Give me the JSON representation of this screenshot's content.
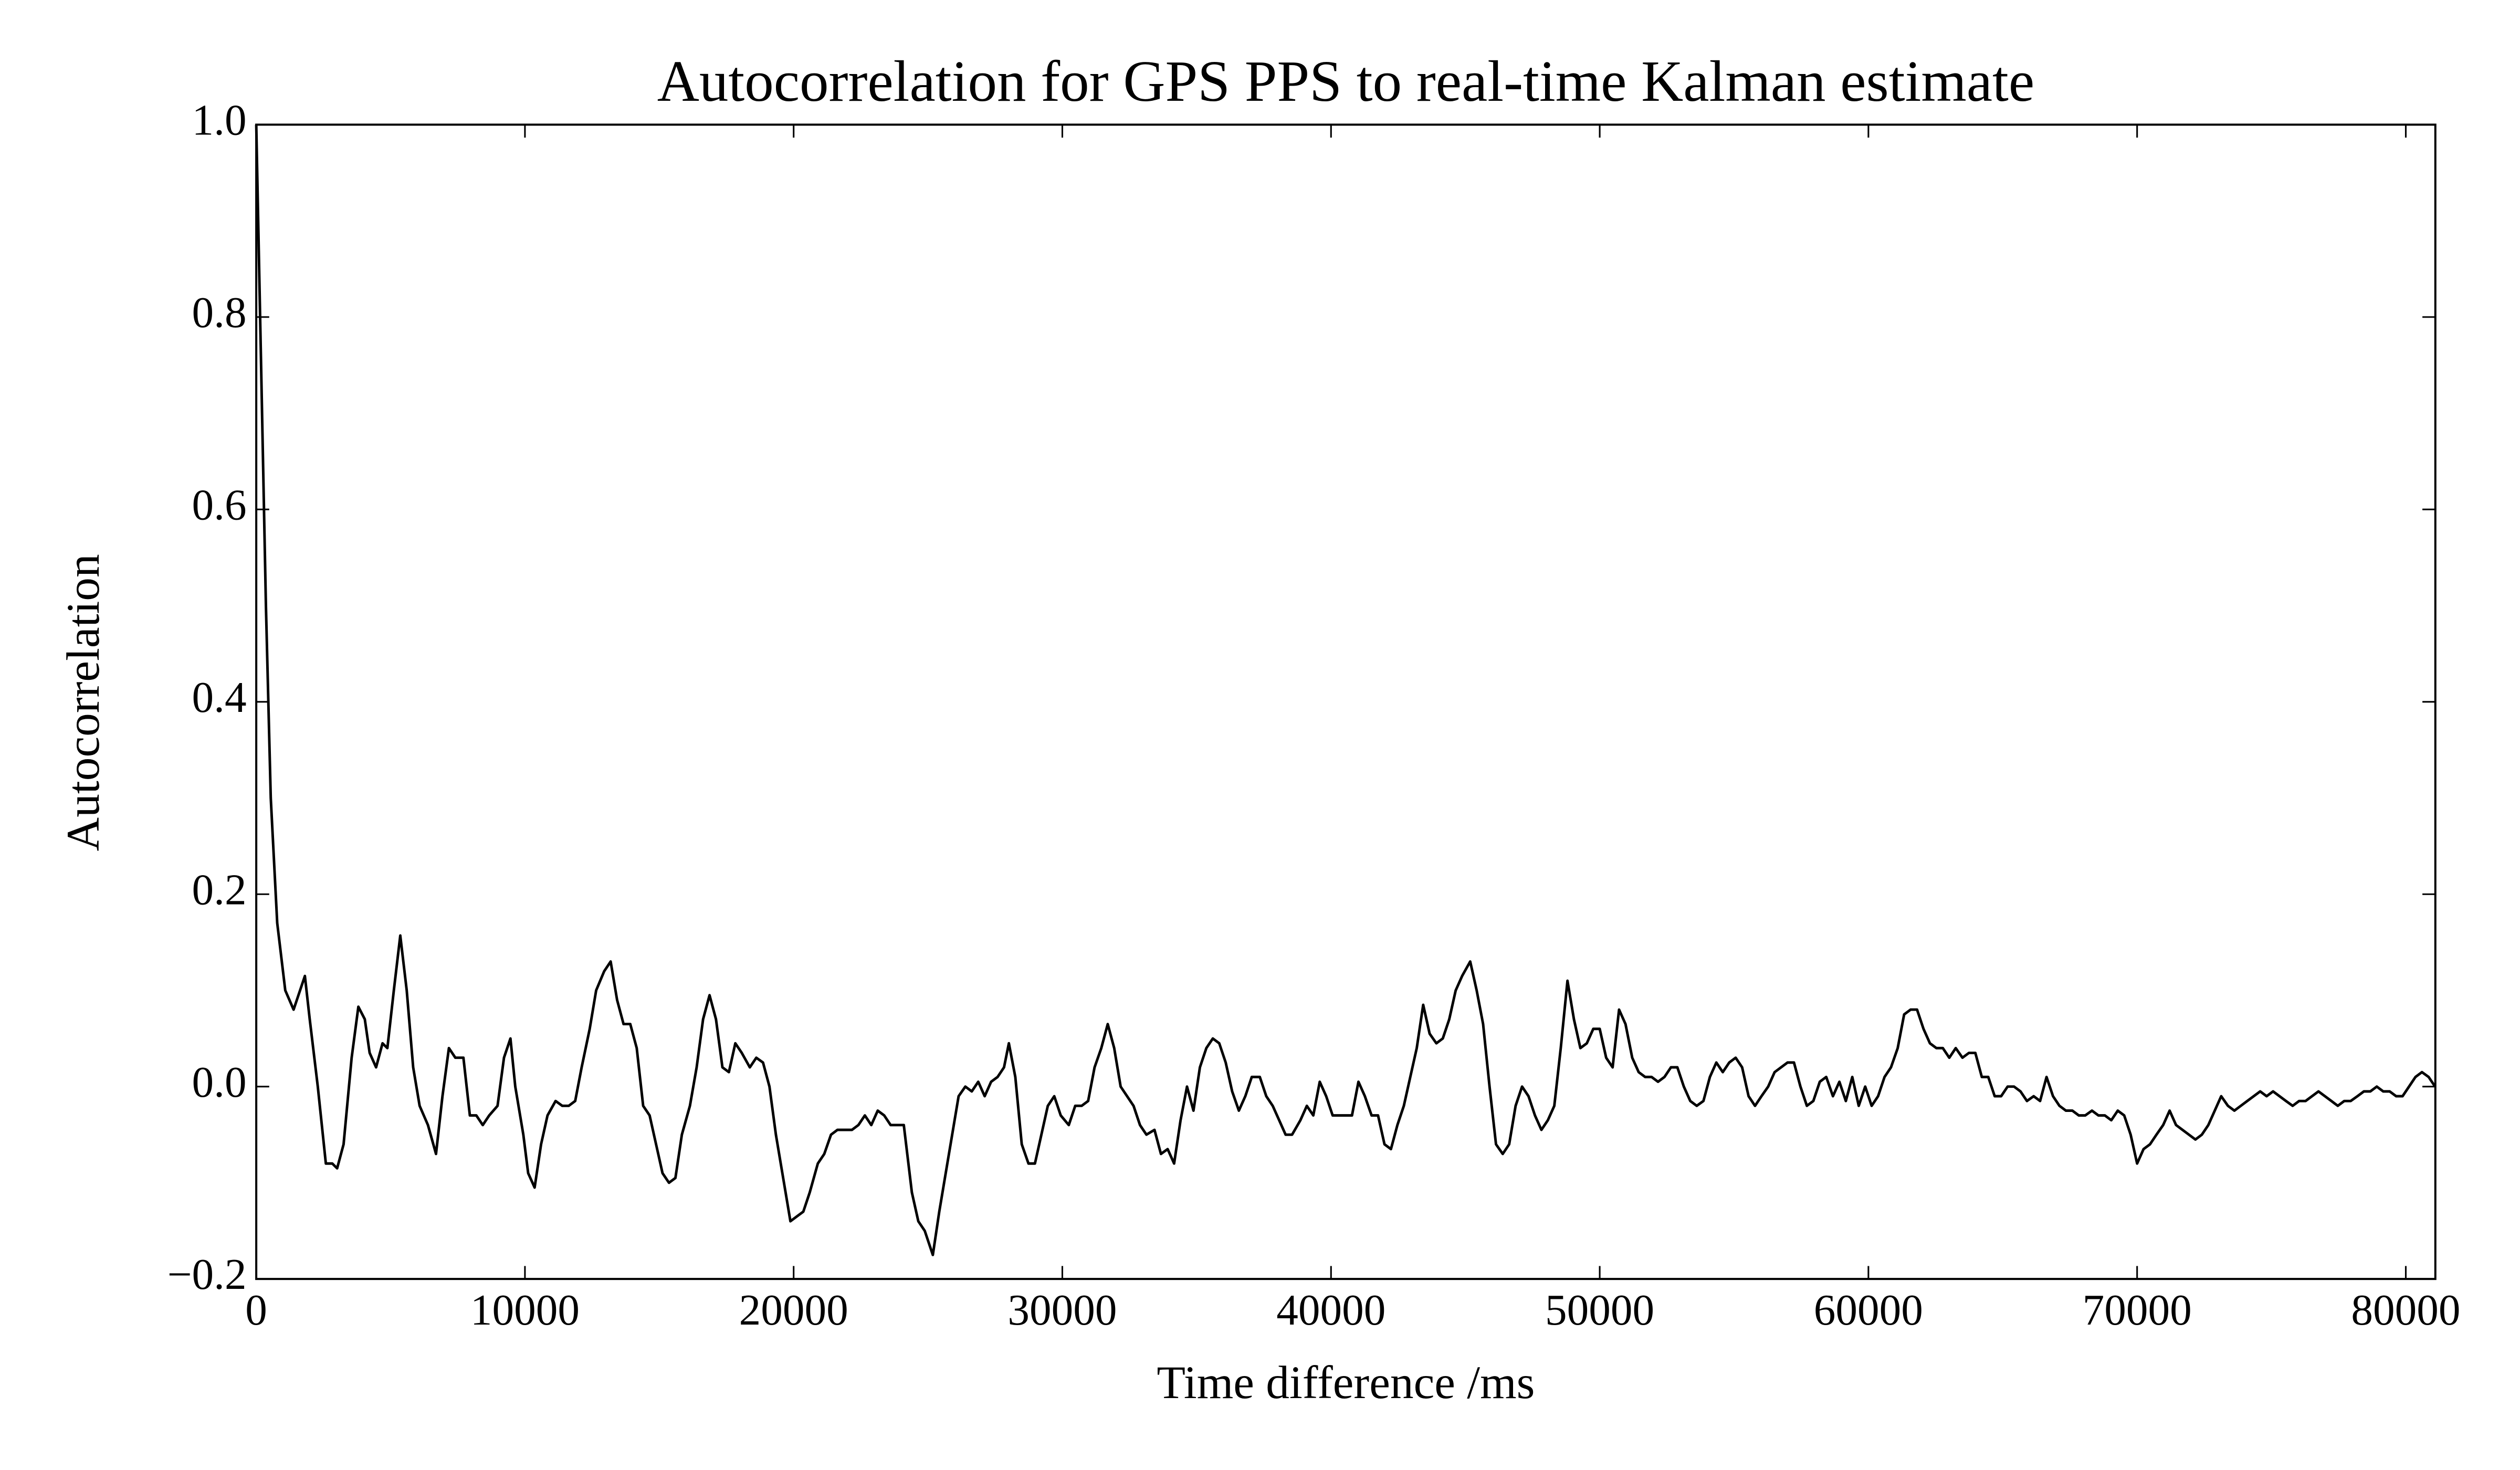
{
  "chart_data": {
    "type": "line",
    "title": "Autocorrelation for GPS PPS to real-time Kalman estimate",
    "xlabel": "Time difference /ms",
    "ylabel": "Autocorrelation",
    "xlim": [
      0,
      81100
    ],
    "ylim": [
      -0.2,
      1.0
    ],
    "xticks": [
      0,
      10000,
      20000,
      30000,
      40000,
      50000,
      60000,
      70000,
      80000
    ],
    "yticks": [
      {
        "value": -0.2,
        "label": "−0.2"
      },
      {
        "value": 0,
        "label": "0.0"
      },
      0.2,
      0.4,
      0.6,
      0.8,
      {
        "value": 1.0,
        "label": "1.0"
      }
    ],
    "grid": false,
    "x": [
      0,
      180,
      360,
      540,
      780,
      1080,
      1390,
      1510,
      1810,
      1990,
      2290,
      2590,
      2830,
      3010,
      3250,
      3550,
      3800,
      4040,
      4220,
      4460,
      4700,
      4880,
      5120,
      5360,
      5600,
      5840,
      6080,
      6390,
      6690,
      6930,
      7170,
      7410,
      7710,
      7950,
      8190,
      8430,
      8670,
      8980,
      9220,
      9460,
      9640,
      9940,
      10120,
      10360,
      10600,
      10840,
      11140,
      11390,
      11630,
      11870,
      12110,
      12410,
      12650,
      12950,
      13190,
      13430,
      13670,
      13920,
      14160,
      14400,
      14640,
      14880,
      15120,
      15360,
      15600,
      15840,
      16140,
      16390,
      16630,
      16870,
      17110,
      17350,
      17590,
      17830,
      18070,
      18370,
      18610,
      18860,
      19100,
      19340,
      19640,
      19880,
      20120,
      20360,
      20600,
      20900,
      21140,
      21390,
      21630,
      21870,
      22170,
      22410,
      22650,
      22890,
      23130,
      23370,
      23610,
      23860,
      24100,
      24400,
      24640,
      24880,
      25180,
      25420,
      25660,
      25900,
      26140,
      26390,
      26630,
      26870,
      27110,
      27350,
      27590,
      27830,
      28010,
      28250,
      28490,
      28740,
      28980,
      29220,
      29460,
      29700,
      29940,
      30240,
      30480,
      30720,
      30960,
      31200,
      31450,
      31690,
      31930,
      32170,
      32410,
      32650,
      32890,
      33130,
      33430,
      33670,
      33920,
      34160,
      34400,
      34640,
      34880,
      35120,
      35360,
      35600,
      35840,
      36080,
      36320,
      36570,
      36810,
      37050,
      37350,
      37590,
      37830,
      38070,
      38310,
      38550,
      38860,
      39100,
      39340,
      39580,
      39820,
      40060,
      40300,
      40540,
      40780,
      41020,
      41260,
      41510,
      41750,
      41990,
      42230,
      42470,
      42710,
      42950,
      43190,
      43430,
      43670,
      43920,
      44160,
      44400,
      44640,
      44880,
      45180,
      45420,
      45660,
      45900,
      46140,
      46390,
      46630,
      46870,
      47110,
      47350,
      47590,
      47830,
      48070,
      48310,
      48550,
      48800,
      49040,
      49280,
      49520,
      49760,
      50000,
      50240,
      50480,
      50720,
      50960,
      51210,
      51450,
      51690,
      51930,
      52170,
      52410,
      52650,
      52890,
      53130,
      53370,
      53610,
      53860,
      54100,
      54340,
      54580,
      54820,
      55060,
      55300,
      55540,
      55780,
      56020,
      56270,
      56510,
      56750,
      56990,
      57230,
      57470,
      57710,
      57950,
      58190,
      58430,
      58680,
      58920,
      59160,
      59400,
      59640,
      59880,
      60120,
      60360,
      60600,
      60840,
      61090,
      61330,
      61570,
      61810,
      62050,
      62290,
      62530,
      62770,
      63010,
      63250,
      63500,
      63740,
      63980,
      64220,
      64460,
      64700,
      64940,
      65180,
      65420,
      65660,
      65900,
      66150,
      66390,
      66630,
      66870,
      67110,
      67350,
      67590,
      67830,
      68070,
      68320,
      68560,
      68800,
      69040,
      69280,
      69520,
      69760,
      70000,
      70240,
      70480,
      70720,
      70970,
      71210,
      71450,
      71690,
      71930,
      72170,
      72410,
      72650,
      72890,
      73130,
      73380,
      73620,
      73860,
      74100,
      74340,
      74580,
      74820,
      75060,
      75300,
      75540,
      75790,
      76030,
      76270,
      76510,
      76750,
      76990,
      77230,
      77470,
      77710,
      77950,
      78200,
      78440,
      78680,
      78920,
      79160,
      79400,
      79640,
      79880,
      80120,
      80360,
      80600,
      80850,
      81090
    ],
    "series": [
      {
        "name": "Autocorrelation",
        "color": "#000000",
        "values": [
          1.0,
          0.75,
          0.5,
          0.3,
          0.17,
          0.1,
          0.08,
          0.09,
          0.115,
          0.07,
          0.0,
          -0.08,
          -0.08,
          -0.085,
          -0.06,
          0.03,
          0.083,
          0.07,
          0.035,
          0.02,
          0.045,
          0.04,
          0.1,
          0.157,
          0.1,
          0.02,
          -0.02,
          -0.04,
          -0.07,
          -0.01,
          0.04,
          0.03,
          0.03,
          -0.03,
          -0.03,
          -0.04,
          -0.03,
          -0.02,
          0.03,
          0.05,
          0.0,
          -0.05,
          -0.09,
          -0.105,
          -0.06,
          -0.03,
          -0.015,
          -0.02,
          -0.02,
          -0.015,
          0.02,
          0.06,
          0.1,
          0.12,
          0.13,
          0.09,
          0.065,
          0.065,
          0.04,
          -0.02,
          -0.03,
          -0.06,
          -0.09,
          -0.1,
          -0.095,
          -0.05,
          -0.02,
          0.02,
          0.07,
          0.095,
          0.07,
          0.02,
          0.015,
          0.045,
          0.035,
          0.02,
          0.03,
          0.025,
          0.0,
          -0.05,
          -0.1,
          -0.14,
          -0.135,
          -0.13,
          -0.11,
          -0.08,
          -0.07,
          -0.05,
          -0.045,
          -0.045,
          -0.045,
          -0.04,
          -0.03,
          -0.04,
          -0.025,
          -0.03,
          -0.04,
          -0.04,
          -0.04,
          -0.11,
          -0.14,
          -0.15,
          -0.175,
          -0.13,
          -0.09,
          -0.05,
          -0.01,
          0.0,
          -0.005,
          0.005,
          -0.01,
          0.005,
          0.01,
          0.02,
          0.045,
          0.01,
          -0.06,
          -0.08,
          -0.08,
          -0.05,
          -0.02,
          -0.01,
          -0.03,
          -0.04,
          -0.02,
          -0.02,
          -0.015,
          0.02,
          0.04,
          0.065,
          0.04,
          0.0,
          -0.01,
          -0.02,
          -0.04,
          -0.05,
          -0.045,
          -0.07,
          -0.065,
          -0.08,
          -0.035,
          0.0,
          -0.025,
          0.02,
          0.04,
          0.05,
          0.045,
          0.025,
          -0.005,
          -0.025,
          -0.01,
          0.01,
          0.01,
          -0.01,
          -0.02,
          -0.035,
          -0.05,
          -0.05,
          -0.035,
          -0.02,
          -0.03,
          0.005,
          -0.01,
          -0.03,
          -0.03,
          -0.03,
          -0.03,
          0.005,
          -0.01,
          -0.03,
          -0.03,
          -0.06,
          -0.065,
          -0.04,
          -0.02,
          0.01,
          0.04,
          0.085,
          0.055,
          0.045,
          0.05,
          0.07,
          0.1,
          0.115,
          0.13,
          0.1,
          0.065,
          0.0,
          -0.06,
          -0.07,
          -0.06,
          -0.02,
          0.0,
          -0.01,
          -0.03,
          -0.045,
          -0.035,
          -0.02,
          0.04,
          0.11,
          0.07,
          0.04,
          0.045,
          0.06,
          0.06,
          0.03,
          0.02,
          0.08,
          0.065,
          0.03,
          0.015,
          0.01,
          0.01,
          0.005,
          0.01,
          0.02,
          0.02,
          0.0,
          -0.015,
          -0.02,
          -0.015,
          0.01,
          0.025,
          0.015,
          0.025,
          0.03,
          0.02,
          -0.01,
          -0.02,
          -0.01,
          0.0,
          0.015,
          0.02,
          0.025,
          0.025,
          0.0,
          -0.02,
          -0.015,
          0.005,
          0.01,
          -0.01,
          0.005,
          -0.015,
          0.01,
          -0.02,
          0.0,
          -0.02,
          -0.01,
          0.01,
          0.02,
          0.04,
          0.075,
          0.08,
          0.08,
          0.06,
          0.045,
          0.04,
          0.04,
          0.03,
          0.04,
          0.03,
          0.035,
          0.035,
          0.01,
          0.01,
          -0.01,
          -0.01,
          0.0,
          0.0,
          -0.005,
          -0.015,
          -0.01,
          -0.015,
          0.01,
          -0.01,
          -0.02,
          -0.025,
          -0.025,
          -0.03,
          -0.03,
          -0.025,
          -0.03,
          -0.03,
          -0.035,
          -0.025,
          -0.03,
          -0.05,
          -0.08,
          -0.065,
          -0.06,
          -0.05,
          -0.04,
          -0.025,
          -0.04,
          -0.045,
          -0.05,
          -0.055,
          -0.05,
          -0.04,
          -0.025,
          -0.01,
          -0.02,
          -0.025,
          -0.02,
          -0.015,
          -0.01,
          -0.005,
          -0.01,
          -0.005,
          -0.01,
          -0.015,
          -0.02,
          -0.015,
          -0.015,
          -0.01,
          -0.005,
          -0.01,
          -0.015,
          -0.02,
          -0.015,
          -0.015,
          -0.01,
          -0.005,
          -0.005,
          0.0,
          -0.005,
          -0.005,
          -0.01,
          -0.01,
          0.0,
          0.01,
          0.015,
          0.01,
          0.0
        ]
      }
    ]
  }
}
